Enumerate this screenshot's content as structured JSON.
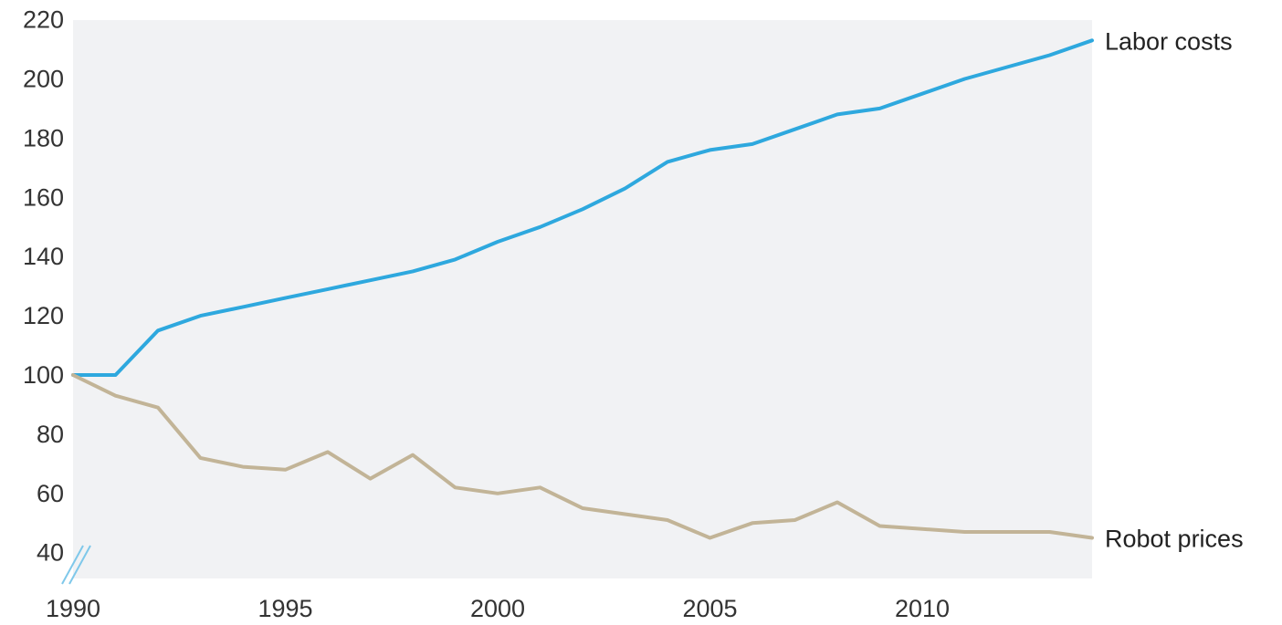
{
  "chart_data": {
    "type": "line",
    "title": "",
    "xlabel": "",
    "ylabel": "",
    "x": [
      1990,
      1991,
      1992,
      1993,
      1994,
      1995,
      1996,
      1997,
      1998,
      1999,
      2000,
      2001,
      2002,
      2003,
      2004,
      2005,
      2006,
      2007,
      2008,
      2009,
      2010,
      2011,
      2012,
      2013,
      2014
    ],
    "xlim": [
      1990,
      2014
    ],
    "ylim": [
      36,
      222
    ],
    "xticks": [
      "1990",
      "1995",
      "2000",
      "2005",
      "2010"
    ],
    "yticks": [
      "40",
      "60",
      "80",
      "100",
      "120",
      "140",
      "160",
      "180",
      "200",
      "220"
    ],
    "axis_break": "y-axis break below 40",
    "background": "#f1f2f4",
    "grid": false,
    "legend": "direct labels at right end of lines",
    "series": [
      {
        "name": "Labor costs",
        "color": "#2ea8de",
        "values": [
          100,
          100,
          115,
          120,
          123,
          126,
          129,
          132,
          135,
          139,
          145,
          150,
          156,
          163,
          172,
          176,
          178,
          183,
          188,
          190,
          195,
          200,
          204,
          208,
          213
        ]
      },
      {
        "name": "Robot prices",
        "color": "#c2b497",
        "values": [
          100,
          93,
          89,
          72,
          69,
          68,
          74,
          65,
          73,
          62,
          60,
          62,
          55,
          53,
          51,
          45,
          50,
          51,
          57,
          49,
          48,
          47,
          47,
          47,
          45
        ]
      }
    ]
  }
}
